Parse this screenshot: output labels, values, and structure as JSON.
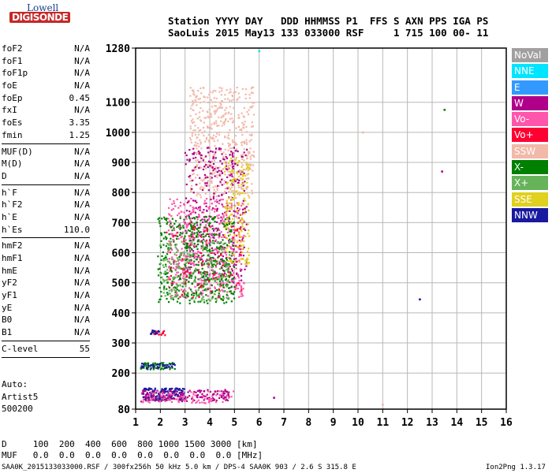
{
  "logo": {
    "line1": "Lowell",
    "line2": "DIGISONDE"
  },
  "header": {
    "row1": "Station YYYY DAY   DDD HHMMSS P1  FFS S AXN PPS IGA PS",
    "row2": "SaoLuis 2015 May13 133 033000 RSF     1 715 100 00- 11"
  },
  "params": [
    [
      {
        "k": "foF2",
        "v": "N/A"
      },
      {
        "k": "foF1",
        "v": "N/A"
      },
      {
        "k": "foF1p",
        "v": "N/A"
      },
      {
        "k": "foE",
        "v": "N/A"
      },
      {
        "k": "foEp",
        "v": "0.45"
      },
      {
        "k": "fxI",
        "v": "N/A"
      },
      {
        "k": "foEs",
        "v": "3.35"
      },
      {
        "k": "fmin",
        "v": "1.25"
      }
    ],
    [
      {
        "k": "MUF(D)",
        "v": "N/A"
      },
      {
        "k": "M(D)",
        "v": "N/A"
      },
      {
        "k": "D",
        "v": "N/A"
      }
    ],
    [
      {
        "k": "h`F",
        "v": "N/A"
      },
      {
        "k": "h`F2",
        "v": "N/A"
      },
      {
        "k": "h`E",
        "v": "N/A"
      },
      {
        "k": "h`Es",
        "v": "110.0"
      }
    ],
    [
      {
        "k": "hmF2",
        "v": "N/A"
      },
      {
        "k": "hmF1",
        "v": "N/A"
      },
      {
        "k": "hmE",
        "v": "N/A"
      },
      {
        "k": "yF2",
        "v": "N/A"
      },
      {
        "k": "yF1",
        "v": "N/A"
      },
      {
        "k": "yE",
        "v": "N/A"
      },
      {
        "k": "B0",
        "v": "N/A"
      },
      {
        "k": "B1",
        "v": "N/A"
      }
    ],
    [
      {
        "k": "C-level",
        "v": "55"
      }
    ]
  ],
  "autoscaling": {
    "line1": "Auto:",
    "line2": "Artist5",
    "line3": "500200"
  },
  "legend": [
    {
      "label": "NoVal",
      "bg": "#a0a0a0",
      "fg": "#ffffff"
    },
    {
      "label": "NNE",
      "bg": "#00e5ff",
      "fg": "#ffffff"
    },
    {
      "label": "E",
      "bg": "#3399ff",
      "fg": "#ffffff"
    },
    {
      "label": "W",
      "bg": "#b0008a",
      "fg": "#ffffff"
    },
    {
      "label": "Vo-",
      "bg": "#ff55aa",
      "fg": "#ffffff"
    },
    {
      "label": "Vo+",
      "bg": "#ff0033",
      "fg": "#ffffff"
    },
    {
      "label": "SSW",
      "bg": "#f2b8a8",
      "fg": "#ffffff"
    },
    {
      "label": "X-",
      "bg": "#008000",
      "fg": "#ffffff"
    },
    {
      "label": "X+",
      "bg": "#66b35a",
      "fg": "#ffffff"
    },
    {
      "label": "SSE",
      "bg": "#e0d020",
      "fg": "#ffffff"
    },
    {
      "label": "NNW",
      "bg": "#1a1aa0",
      "fg": "#ffffff"
    }
  ],
  "footer": {
    "row_d": "D     100  200  400  600  800 1000 1500 3000 [km]",
    "row_muf": "MUF   0.0  0.0  0.0  0.0  0.0  0.0  0.0  0.0 [MHz]",
    "file_info": "SAA0K_2015133033000.RSF / 300fx256h 50 kHz 5.0 km / DPS-4 SAA0K 903 / 2.6 S 315.8 E",
    "version": "Ion2Png 1.3.17"
  },
  "chart_data": {
    "type": "scatter",
    "xlim": [
      1,
      16
    ],
    "ylim": [
      80,
      1280
    ],
    "x_ticks": [
      1,
      2,
      3,
      4,
      5,
      6,
      7,
      8,
      9,
      10,
      11,
      12,
      13,
      14,
      15,
      16
    ],
    "y_ticks": [
      80,
      200,
      300,
      400,
      500,
      600,
      700,
      800,
      900,
      1000,
      1100,
      1280
    ],
    "grid": true,
    "clusters": [
      {
        "color": "#f2b8a8",
        "x": [
          3.2,
          5.8
        ],
        "y": [
          780,
          1150
        ],
        "n": 520
      },
      {
        "color": "#b0008a",
        "x": [
          3.0,
          5.5
        ],
        "y": [
          500,
          950
        ],
        "n": 360
      },
      {
        "color": "#ff55aa",
        "x": [
          2.3,
          5.4
        ],
        "y": [
          450,
          780
        ],
        "n": 520
      },
      {
        "color": "#008000",
        "x": [
          1.9,
          5.0
        ],
        "y": [
          430,
          720
        ],
        "n": 480
      },
      {
        "color": "#e0d020",
        "x": [
          4.6,
          5.6
        ],
        "y": [
          560,
          920
        ],
        "n": 180
      },
      {
        "color": "#66b35a",
        "x": [
          2.0,
          4.8
        ],
        "y": [
          440,
          640
        ],
        "n": 200
      },
      {
        "color": "#ff0033",
        "x": [
          2.2,
          5.3
        ],
        "y": [
          450,
          700
        ],
        "n": 90
      },
      {
        "color": "#1a1aa0",
        "x": [
          1.3,
          3.0
        ],
        "y": [
          110,
          150
        ],
        "n": 170
      },
      {
        "color": "#b0008a",
        "x": [
          1.2,
          4.8
        ],
        "y": [
          105,
          145
        ],
        "n": 150
      },
      {
        "color": "#ff55aa",
        "x": [
          1.2,
          5.0
        ],
        "y": [
          100,
          140
        ],
        "n": 90
      },
      {
        "color": "#008000",
        "x": [
          1.2,
          2.6
        ],
        "y": [
          212,
          235
        ],
        "n": 60
      },
      {
        "color": "#1a1aa0",
        "x": [
          1.2,
          2.6
        ],
        "y": [
          215,
          232
        ],
        "n": 40
      },
      {
        "color": "#ff0033",
        "x": [
          1.7,
          2.2
        ],
        "y": [
          325,
          345
        ],
        "n": 20
      },
      {
        "color": "#1a1aa0",
        "x": [
          1.6,
          2.0
        ],
        "y": [
          330,
          342
        ],
        "n": 15
      }
    ],
    "points": [
      {
        "x": 13.5,
        "y": 1075,
        "color": "#008000"
      },
      {
        "x": 13.4,
        "y": 870,
        "color": "#b0008a"
      },
      {
        "x": 12.5,
        "y": 445,
        "color": "#1a1aa0"
      },
      {
        "x": 6.0,
        "y": 1270,
        "color": "#00e5ff"
      },
      {
        "x": 11.0,
        "y": 95,
        "color": "#f2b8a8"
      },
      {
        "x": 6.6,
        "y": 118,
        "color": "#b0008a"
      },
      {
        "x": 10.2,
        "y": 1000,
        "color": "#f2b8a8"
      }
    ]
  }
}
